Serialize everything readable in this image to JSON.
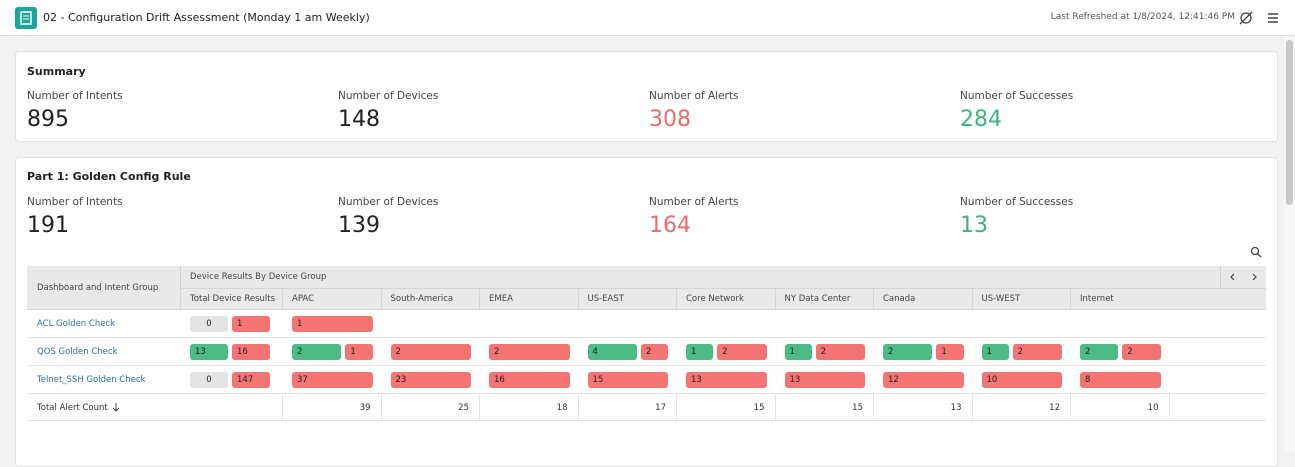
{
  "header": {
    "title": "02 - Configuration Drift Assessment (Monday 1 am Weekly)",
    "last_refreshed": "Last Refreshed at 1/8/2024, 12:41:46 PM"
  },
  "summary": {
    "title": "Summary",
    "metrics": [
      {
        "label": "Number of Intents",
        "value": 895
      },
      {
        "label": "Number of Devices",
        "value": 148
      },
      {
        "label": "Number of Alerts",
        "value": 308
      },
      {
        "label": "Number of Successes",
        "value": 284
      }
    ]
  },
  "part1": {
    "title": "Part 1: Golden Config Rule",
    "metrics": [
      {
        "label": "Number of Intents",
        "value": 191
      },
      {
        "label": "Number of Devices",
        "value": 139
      },
      {
        "label": "Number of Alerts",
        "value": 164
      },
      {
        "label": "Number of Successes",
        "value": 13
      }
    ],
    "table": {
      "first_header": "Dashboard and Intent Group",
      "group_header": "Device Results By Device Group",
      "columns": [
        "Total Device Results",
        "APAC",
        "South-America",
        "EMEA",
        "US-EAST",
        "Core Network",
        "NY Data Center",
        "Canada",
        "US-WEST",
        "Internet"
      ],
      "rows": [
        {
          "name": "ACL Golden Check",
          "cells": [
            {
              "success": 0,
              "alerts": 1
            },
            {
              "success": null,
              "alerts": 1
            },
            null,
            null,
            null,
            null,
            null,
            null,
            null,
            null
          ]
        },
        {
          "name": "QOS Golden Check",
          "cells": [
            {
              "success": 13,
              "alerts": 16
            },
            {
              "success": 2,
              "alerts": 1
            },
            {
              "success": null,
              "alerts": 2
            },
            {
              "success": null,
              "alerts": 2
            },
            {
              "success": 4,
              "alerts": 2
            },
            {
              "success": 1,
              "alerts": 2
            },
            {
              "success": 1,
              "alerts": 2
            },
            {
              "success": 2,
              "alerts": 1
            },
            {
              "success": 1,
              "alerts": 2
            },
            {
              "success": 2,
              "alerts": 2
            }
          ]
        },
        {
          "name": "Telnet_SSH Golden Check",
          "cells": [
            {
              "success": 0,
              "alerts": 147
            },
            {
              "success": null,
              "alerts": 37
            },
            {
              "success": null,
              "alerts": 23
            },
            {
              "success": null,
              "alerts": 16
            },
            {
              "success": null,
              "alerts": 15
            },
            {
              "success": null,
              "alerts": 13
            },
            {
              "success": null,
              "alerts": 13
            },
            {
              "success": null,
              "alerts": 12
            },
            {
              "success": null,
              "alerts": 10
            },
            {
              "success": null,
              "alerts": 8
            }
          ]
        }
      ],
      "total_label": "Total Alert Count",
      "totals": [
        null,
        39,
        25,
        18,
        17,
        15,
        15,
        13,
        12,
        10
      ]
    }
  }
}
